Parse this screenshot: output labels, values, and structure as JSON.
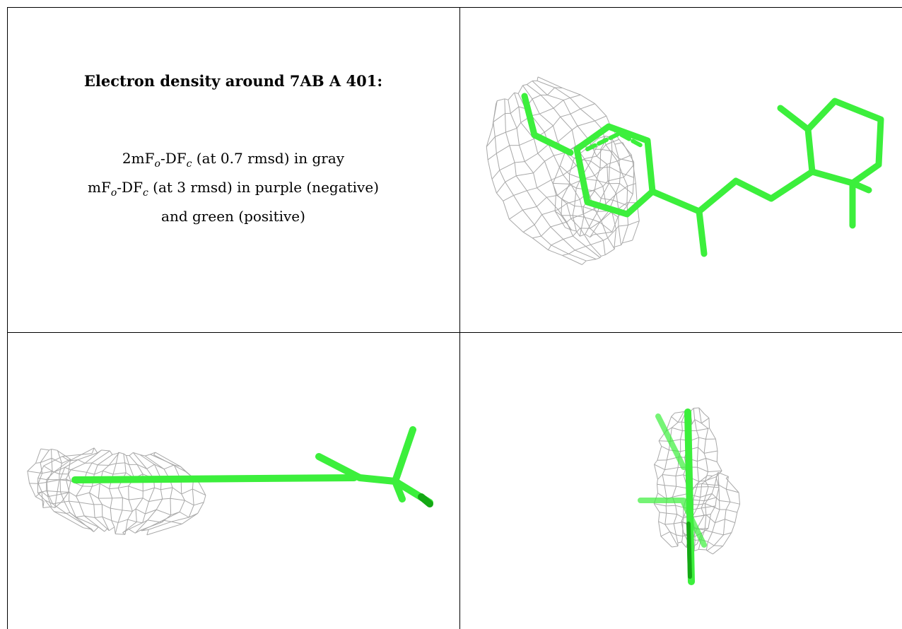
{
  "caption": {
    "title": "Electron density around 7AB A 401:",
    "line1_pre": "2mF",
    "line1_sub1": "o",
    "line1_mid": "-DF",
    "line1_sub2": "c",
    "line1_post": " (at 0.7 rmsd) in gray",
    "line2_pre": "mF",
    "line2_sub1": "o",
    "line2_mid": "-DF",
    "line2_sub2": "c",
    "line2_post": " (at 3 rmsd) in purple (negative)",
    "line3": "and green (positive)"
  },
  "colors": {
    "ligand": "#3cef3c",
    "ligand_dark": "#14a814",
    "mesh_2fofc": "#9a9a9a",
    "border": "#000000"
  },
  "panels": [
    {
      "id": "view-1",
      "icon": "electron-density-front-view"
    },
    {
      "id": "view-2",
      "icon": "electron-density-side-view"
    },
    {
      "id": "view-3",
      "icon": "electron-density-end-view"
    }
  ]
}
